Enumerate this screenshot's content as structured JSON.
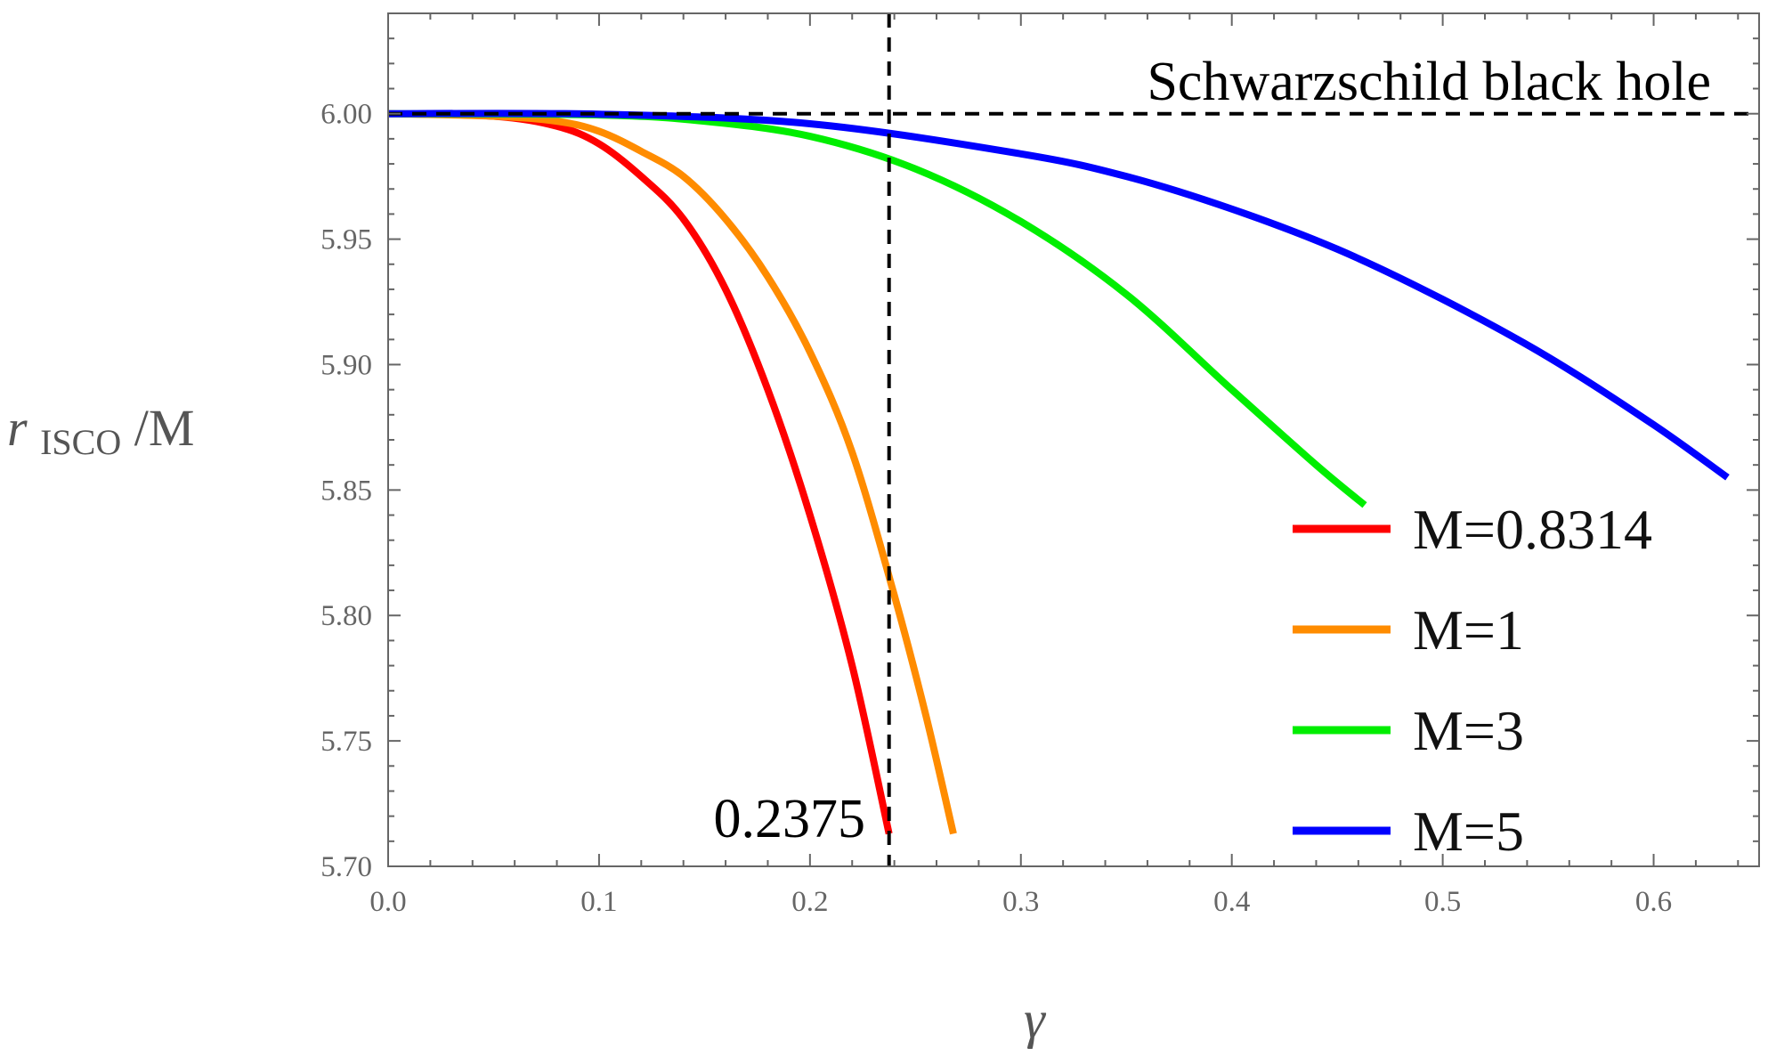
{
  "chart_data": {
    "type": "line",
    "title": "",
    "xlabel": "γ",
    "ylabel": {
      "main": "r",
      "subscript": "ISCO",
      "suffix": "/M"
    },
    "xlim": [
      0.0,
      0.65
    ],
    "ylim": [
      5.7,
      6.04
    ],
    "x_ticks": [
      "0.0",
      "0.1",
      "0.2",
      "0.3",
      "0.4",
      "0.5",
      "0.6"
    ],
    "x_tick_values": [
      0.0,
      0.1,
      0.2,
      0.3,
      0.4,
      0.5,
      0.6
    ],
    "y_ticks": [
      "5.70",
      "5.75",
      "5.80",
      "5.85",
      "5.90",
      "5.95",
      "6.00"
    ],
    "y_tick_values": [
      5.7,
      5.75,
      5.8,
      5.85,
      5.9,
      5.95,
      6.0
    ],
    "grid": false,
    "legend_position": "bottom-right",
    "series": [
      {
        "name": "M=0.8314",
        "color": "#ff0000",
        "x": [
          0.0,
          0.05,
          0.08,
          0.1,
          0.12,
          0.14,
          0.16,
          0.18,
          0.2,
          0.22,
          0.2375
        ],
        "y": [
          6.0,
          5.999,
          5.995,
          5.988,
          5.975,
          5.958,
          5.93,
          5.89,
          5.84,
          5.78,
          5.713
        ]
      },
      {
        "name": "M=1",
        "color": "#ff8c00",
        "x": [
          0.0,
          0.05,
          0.08,
          0.1,
          0.12,
          0.14,
          0.16,
          0.18,
          0.2,
          0.22,
          0.24,
          0.255,
          0.268
        ],
        "y": [
          6.0,
          5.999,
          5.997,
          5.993,
          5.985,
          5.975,
          5.958,
          5.935,
          5.905,
          5.865,
          5.808,
          5.76,
          5.713
        ]
      },
      {
        "name": "M=3",
        "color": "#00ee00",
        "x": [
          0.0,
          0.1,
          0.15,
          0.2,
          0.25,
          0.3,
          0.35,
          0.4,
          0.44,
          0.463
        ],
        "y": [
          6.0,
          5.9995,
          5.997,
          5.991,
          5.978,
          5.957,
          5.928,
          5.89,
          5.86,
          5.844
        ]
      },
      {
        "name": "M=5",
        "color": "#0000ff",
        "x": [
          0.0,
          0.1,
          0.2,
          0.3,
          0.35,
          0.4,
          0.45,
          0.5,
          0.55,
          0.6,
          0.635
        ],
        "y": [
          6.0,
          5.9998,
          5.996,
          5.984,
          5.975,
          5.962,
          5.946,
          5.926,
          5.903,
          5.876,
          5.855
        ]
      }
    ],
    "reference_lines": [
      {
        "orientation": "horizontal",
        "value": 6.0,
        "style": "dashed",
        "color": "#000000"
      },
      {
        "orientation": "vertical",
        "value": 0.2375,
        "style": "dashed",
        "color": "#000000"
      }
    ],
    "annotations": {
      "horizontal_line_label": "Schwarzschild black hole",
      "vertical_line_label": "0.2375"
    }
  }
}
